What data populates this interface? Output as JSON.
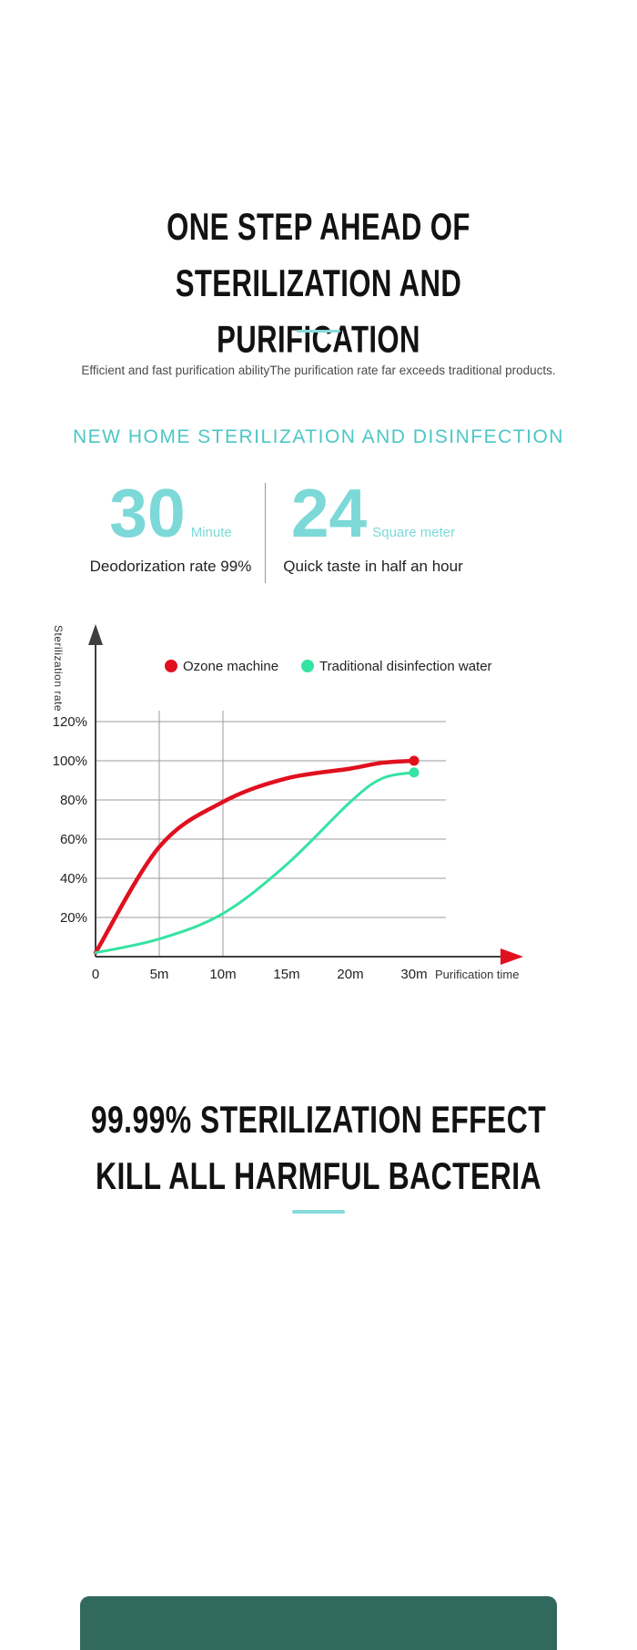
{
  "header": {
    "title_line1": "ONE STEP AHEAD OF",
    "title_line2": "STERILIZATION AND PURIFICATION",
    "subtitle": "Efficient and fast purification abilityThe purification rate far exceeds traditional products."
  },
  "stats": {
    "heading": "NEW HOME STERILIZATION AND DISINFECTION",
    "items": [
      {
        "value": "30",
        "unit": "Minute",
        "caption": "Deodorization rate 99%"
      },
      {
        "value": "24",
        "unit": "Square meter",
        "caption": "Quick taste in half an hour"
      }
    ]
  },
  "chart_data": {
    "type": "line",
    "title": "",
    "ylabel": "Sterilization rate",
    "xlabel": "Purification time",
    "x_ticks": [
      "0",
      "5m",
      "10m",
      "15m",
      "20m",
      "30m"
    ],
    "x_tick_minutes": [
      0,
      5,
      10,
      15,
      20,
      30
    ],
    "y_ticks": [
      "20%",
      "40%",
      "60%",
      "80%",
      "100%",
      "120%"
    ],
    "ylim": [
      0,
      130
    ],
    "grid": true,
    "vertical_gridlines_at": [
      "5m",
      "10m"
    ],
    "legend_position": "top",
    "series": [
      {
        "name": "Ozone machine",
        "color": "#e0101f",
        "x": [
          0,
          5,
          10,
          15,
          20,
          25,
          30
        ],
        "values": [
          2,
          56,
          79,
          91,
          96,
          99,
          100
        ]
      },
      {
        "name": "Traditional disinfection water",
        "color": "#35e3a2",
        "x": [
          0,
          5,
          10,
          15,
          20,
          25,
          30
        ],
        "values": [
          2,
          9,
          22,
          47,
          79,
          91,
          94
        ]
      }
    ]
  },
  "footer": {
    "title_line1": "99.99% STERILIZATION EFFECT",
    "title_line2": "KILL ALL HARMFUL BACTERIA"
  },
  "colors": {
    "accent_teal": "#4bc7c5",
    "light_teal": "#7dd8d8",
    "divider_teal": "#87dbd9",
    "red_series": "#e0101f",
    "green_series": "#35e3a2",
    "strip_green": "#31695e",
    "title_black": "#121212"
  }
}
